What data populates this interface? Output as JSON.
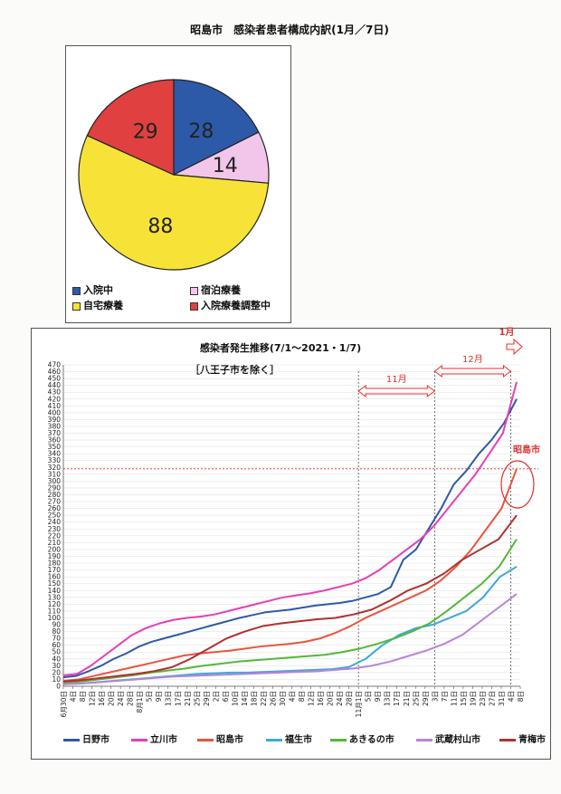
{
  "pie": {
    "title": "昭島市　感染者患者構成内訳(1月／7日)",
    "chart_data": {
      "type": "pie",
      "slices": [
        {
          "label": "入院中",
          "value": 28,
          "color": "#2d5aa8"
        },
        {
          "label": "宿泊療養",
          "value": 14,
          "color": "#f2c6ea"
        },
        {
          "label": "自宅療養",
          "value": 88,
          "color": "#f7e337"
        },
        {
          "label": "入院療養調整中",
          "value": 29,
          "color": "#e04040"
        }
      ]
    }
  },
  "line": {
    "title": "感染者発生推移(7/1～2021・1/7)",
    "subtitle": "［八王子市を除く］",
    "month_labels": {
      "nov": "11月",
      "dec": "12月",
      "jan": "1月"
    },
    "highlight_label": "昭島市",
    "chart_data": {
      "type": "line",
      "ylim": [
        0,
        470
      ],
      "yticks": [
        0,
        10,
        20,
        30,
        40,
        50,
        60,
        70,
        80,
        90,
        100,
        110,
        120,
        130,
        140,
        150,
        160,
        170,
        180,
        190,
        200,
        210,
        220,
        230,
        240,
        250,
        260,
        270,
        280,
        290,
        300,
        310,
        320,
        330,
        340,
        350,
        360,
        370,
        380,
        390,
        400,
        410,
        420,
        430,
        440,
        450,
        460,
        470
      ],
      "xticks": [
        "6月30日",
        "4日",
        "8日",
        "12日",
        "16日",
        "20日",
        "24日",
        "28日",
        "8月1日",
        "5日",
        "9日",
        "13日",
        "17日",
        "21日",
        "25日",
        "29日",
        "2日",
        "6日",
        "10日",
        "14日",
        "18日",
        "22日",
        "26日",
        "30日",
        "4日",
        "8日",
        "12日",
        "16日",
        "20日",
        "24日",
        "28日",
        "11月1日",
        "5日",
        "9日",
        "13日",
        "17日",
        "21日",
        "25日",
        "29日",
        "3日",
        "7日",
        "11日",
        "15日",
        "19日",
        "23日",
        "27日",
        "31日",
        "4日",
        "8日"
      ],
      "reference_y": 318,
      "series": [
        {
          "name": "日野市",
          "color": "#2d5aa8",
          "values": [
            13,
            15,
            22,
            30,
            40,
            48,
            58,
            65,
            70,
            75,
            80,
            85,
            90,
            95,
            100,
            104,
            108,
            110,
            112,
            115,
            118,
            120,
            122,
            125,
            130,
            135,
            145,
            185,
            200,
            230,
            260,
            295,
            315,
            340,
            360,
            385,
            420
          ]
        },
        {
          "name": "立川市",
          "color": "#e43fb8",
          "values": [
            16,
            18,
            30,
            45,
            60,
            75,
            85,
            92,
            97,
            100,
            102,
            105,
            110,
            115,
            120,
            125,
            130,
            133,
            136,
            140,
            145,
            150,
            158,
            170,
            185,
            200,
            215,
            235,
            260,
            285,
            310,
            340,
            370,
            445
          ]
        },
        {
          "name": "昭島市",
          "color": "#e8553e",
          "values": [
            8,
            10,
            15,
            20,
            25,
            30,
            35,
            40,
            45,
            48,
            50,
            52,
            55,
            58,
            60,
            62,
            65,
            70,
            78,
            88,
            100,
            110,
            120,
            130,
            140,
            155,
            175,
            200,
            230,
            260,
            318
          ]
        },
        {
          "name": "福生市",
          "color": "#3fa8d8",
          "values": [
            3,
            4,
            6,
            8,
            10,
            12,
            14,
            16,
            18,
            19,
            20,
            20,
            21,
            22,
            23,
            24,
            25,
            28,
            40,
            60,
            75,
            85,
            90,
            100,
            110,
            130,
            160,
            175
          ]
        },
        {
          "name": "あきるの市",
          "color": "#52b83a",
          "values": [
            5,
            7,
            10,
            13,
            16,
            20,
            23,
            26,
            30,
            33,
            36,
            38,
            40,
            42,
            44,
            46,
            50,
            55,
            62,
            70,
            80,
            92,
            110,
            130,
            150,
            175,
            215
          ]
        },
        {
          "name": "武蔵村山市",
          "color": "#b784d8",
          "values": [
            3,
            4,
            6,
            8,
            10,
            12,
            14,
            15,
            16,
            17,
            18,
            19,
            20,
            21,
            22,
            24,
            26,
            30,
            36,
            44,
            52,
            62,
            75,
            95,
            115,
            135
          ]
        },
        {
          "name": "青梅市",
          "color": "#b13030",
          "values": [
            7,
            9,
            12,
            15,
            18,
            22,
            28,
            40,
            55,
            70,
            80,
            88,
            92,
            95,
            98,
            100,
            105,
            112,
            125,
            140,
            150,
            165,
            185,
            200,
            215,
            250
          ]
        }
      ]
    }
  }
}
